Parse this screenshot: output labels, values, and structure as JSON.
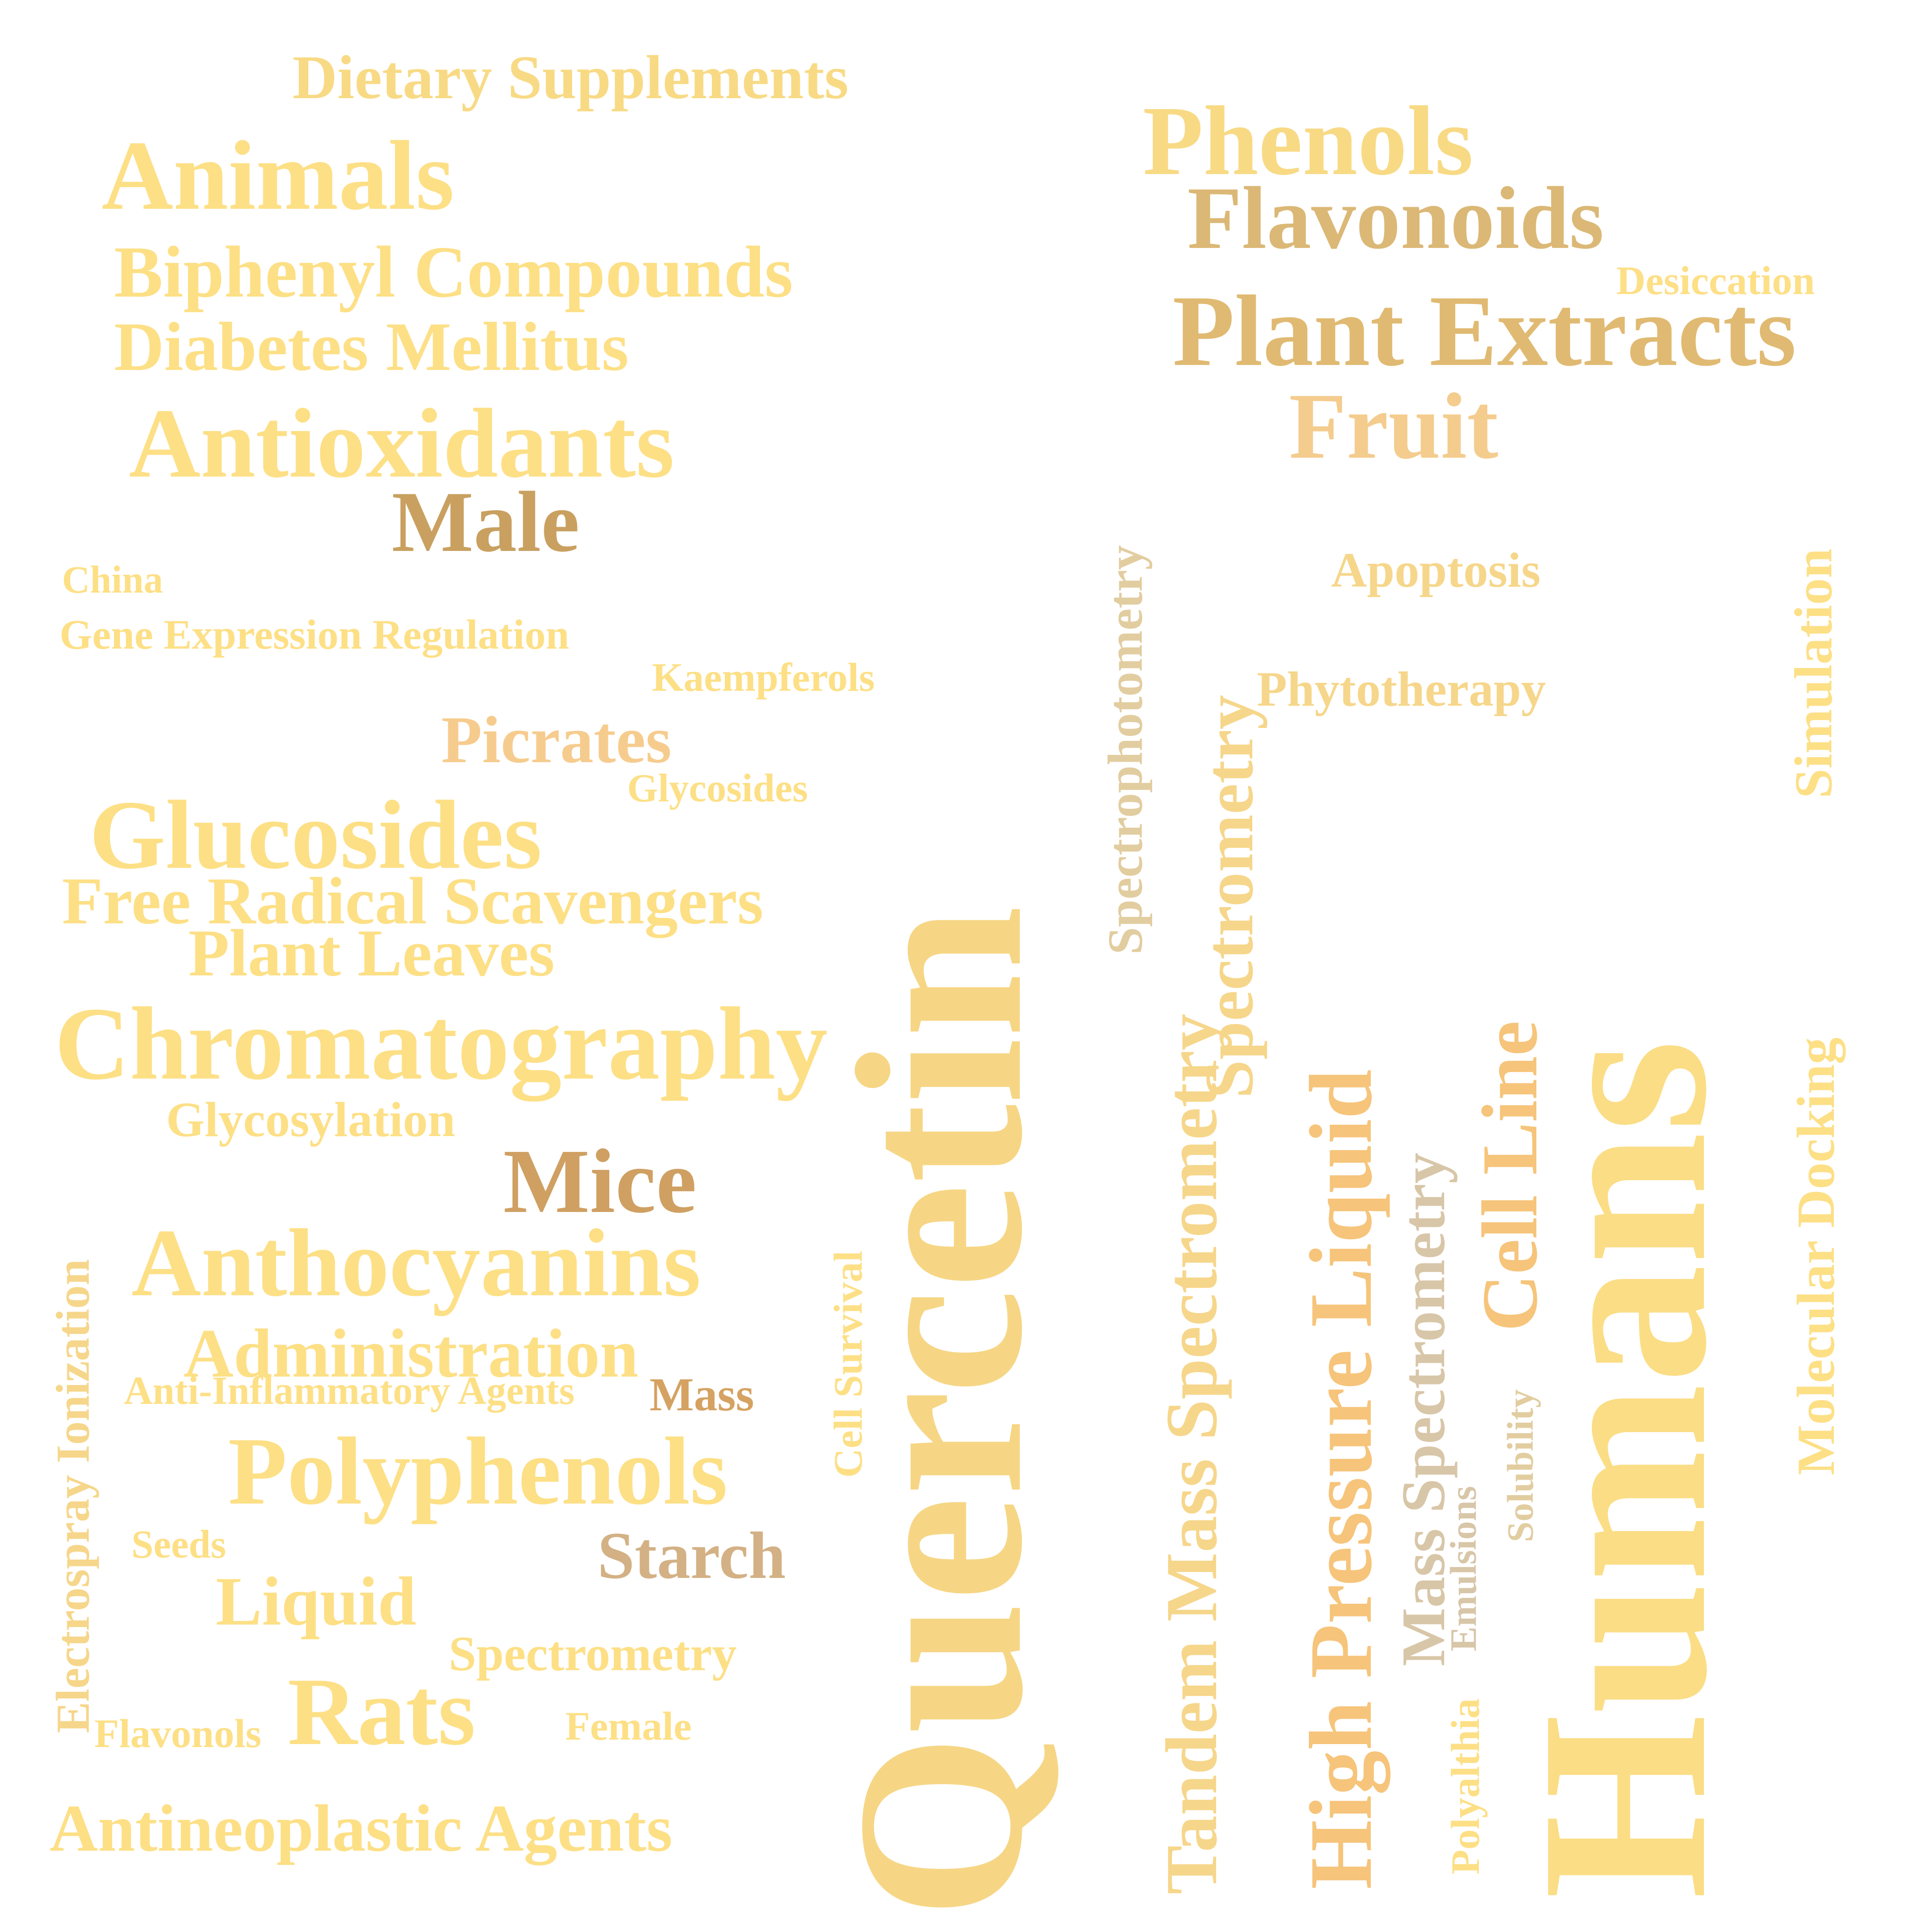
{
  "words": [
    {
      "id": "dietary-supplements",
      "text": "Dietary Supplements",
      "color": "#F8DA85"
    },
    {
      "id": "animals",
      "text": "Animals",
      "color": "#FDDF85"
    },
    {
      "id": "biphenyl-compounds",
      "text": "Biphenyl Compounds",
      "color": "#FDDF85"
    },
    {
      "id": "diabetes-mellitus",
      "text": "Diabetes Mellitus",
      "color": "#FDDF85"
    },
    {
      "id": "antioxidants",
      "text": "Antioxidants",
      "color": "#FDDF85"
    },
    {
      "id": "male",
      "text": "Male",
      "color": "#C9A060"
    },
    {
      "id": "china",
      "text": "China",
      "color": "#FDDF85"
    },
    {
      "id": "gene-expression-regulation",
      "text": "Gene Expression Regulation",
      "color": "#FDDF85"
    },
    {
      "id": "kaempferols",
      "text": "Kaempferols",
      "color": "#FDDF85"
    },
    {
      "id": "picrates",
      "text": "Picrates",
      "color": "#F6CC8E"
    },
    {
      "id": "glycosides",
      "text": "Glycosides",
      "color": "#FDDF85"
    },
    {
      "id": "glucosides",
      "text": "Glucosides",
      "color": "#FDDF85"
    },
    {
      "id": "free-radical-scavengers",
      "text": "Free Radical Scavengers",
      "color": "#FDDF85"
    },
    {
      "id": "plant-leaves",
      "text": "Plant Leaves",
      "color": "#FDDF85"
    },
    {
      "id": "chromatography",
      "text": "Chromatography",
      "color": "#FDDF85"
    },
    {
      "id": "glycosylation",
      "text": "Glycosylation",
      "color": "#FDDF85"
    },
    {
      "id": "mice",
      "text": "Mice",
      "color": "#CFA062"
    },
    {
      "id": "anthocyanins",
      "text": "Anthocyanins",
      "color": "#FDDF85"
    },
    {
      "id": "administration",
      "text": "Administration",
      "color": "#FDDF85"
    },
    {
      "id": "anti-inflammatory-agents",
      "text": "Anti-Inflammatory Agents",
      "color": "#FDDF85"
    },
    {
      "id": "mass-small",
      "text": "Mass",
      "color": "#D5A262"
    },
    {
      "id": "polyphenols",
      "text": "Polyphenols",
      "color": "#FDDF85"
    },
    {
      "id": "starch",
      "text": "Starch",
      "color": "#D3B185"
    },
    {
      "id": "seeds",
      "text": "Seeds",
      "color": "#FDDF85"
    },
    {
      "id": "liquid",
      "text": "Liquid",
      "color": "#FDDF85"
    },
    {
      "id": "spectrometry",
      "text": "Spectrometry",
      "color": "#FDDF85"
    },
    {
      "id": "flavonols",
      "text": "Flavonols",
      "color": "#FDDF85"
    },
    {
      "id": "rats",
      "text": "Rats",
      "color": "#FDDF85"
    },
    {
      "id": "female",
      "text": "Female",
      "color": "#FDDF85"
    },
    {
      "id": "antineoplastic-agents",
      "text": "Antineoplastic Agents",
      "color": "#FDDF85"
    },
    {
      "id": "electrospray-ionization",
      "text": "Electrospray Ionization",
      "color": "#F6D68A"
    },
    {
      "id": "cell-survival",
      "text": "Cell Survival",
      "color": "#FDDF85"
    },
    {
      "id": "quercetin",
      "text": "Quercetin",
      "color": "#F6D685"
    },
    {
      "id": "phenols",
      "text": "Phenols",
      "color": "#F8DA85"
    },
    {
      "id": "flavonoids",
      "text": "Flavonoids",
      "color": "#DBB876"
    },
    {
      "id": "desiccation",
      "text": "Desiccation",
      "color": "#FDDF85"
    },
    {
      "id": "plant-extracts",
      "text": "Plant Extracts",
      "color": "#E0BA72"
    },
    {
      "id": "fruit",
      "text": "Fruit",
      "color": "#F4CC8E"
    },
    {
      "id": "apoptosis",
      "text": "Apoptosis",
      "color": "#F6D68A"
    },
    {
      "id": "phytotherapy",
      "text": "Phytotherapy",
      "color": "#F6D68A"
    },
    {
      "id": "spectrophotometry",
      "text": "Spectrophotometry",
      "color": "#E2CDA0"
    },
    {
      "id": "spectrometry-v",
      "text": "Spectrometry",
      "color": "#F6D68A"
    },
    {
      "id": "tandem-mass-spectrometry",
      "text": "Tandem Mass Spectrometry",
      "color": "#F6D68A"
    },
    {
      "id": "high-pressure-liquid",
      "text": "High Pressure Liquid",
      "color": "#F6C47A"
    },
    {
      "id": "mass-spectrometry",
      "text": "Mass Spectrometry",
      "color": "#D8C6A8"
    },
    {
      "id": "emulsions",
      "text": "Emulsions",
      "color": "#D8C6A8"
    },
    {
      "id": "cell-line",
      "text": "Cell Line",
      "color": "#F6C47A"
    },
    {
      "id": "solubility",
      "text": "Solubility",
      "color": "#E2CDA0"
    },
    {
      "id": "polyalthia",
      "text": "Polyalthia",
      "color": "#FDDF85"
    },
    {
      "id": "humans",
      "text": "Humans",
      "color": "#FBDD85"
    },
    {
      "id": "simulation",
      "text": "Simulation",
      "color": "#FDDF85"
    },
    {
      "id": "molecular-docking",
      "text": "Molecular Docking",
      "color": "#FDDF85"
    }
  ]
}
